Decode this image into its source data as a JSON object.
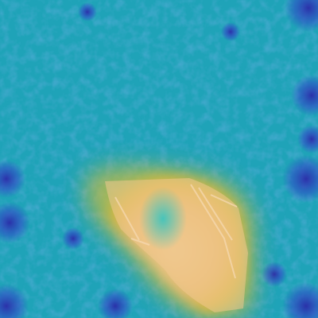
{
  "image": {
    "kind": "heatmap-overlay",
    "subject": "aerial-ground-texture-with-object",
    "colormap": "jet",
    "colors": {
      "background_base": "#1fa3b8",
      "background_dark": "#166f9c",
      "cool_blue": "#2f49c7",
      "deep_blue": "#2b2ba8",
      "heat_edge": "#d7b63a",
      "heat_core": "#f0c98f",
      "heat_mid": "#e8b96f",
      "object_highlight": "#f6d9b1",
      "inner_cyan": "#35c4c0"
    }
  }
}
